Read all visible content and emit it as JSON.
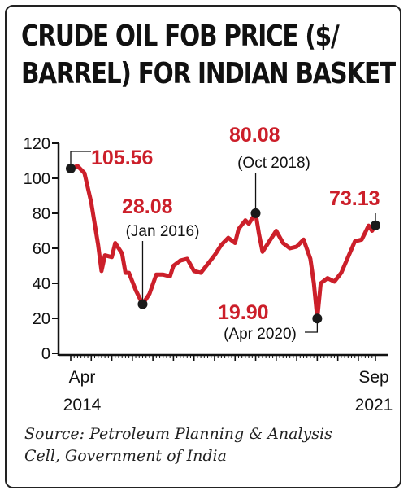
{
  "title_lines": [
    "CRUDE OIL FOB PRICE ($/",
    "BARREL) FOR INDIAN BASKET"
  ],
  "source_lines": [
    "Source: Petroleum Planning & Analysis",
    "Cell, Government of India"
  ],
  "colors": {
    "line": "#cc1f2a",
    "annotation": "#cc1f2a",
    "marker": "#1a1a1a",
    "axis": "#111111",
    "text": "#111111"
  },
  "chart_data": {
    "type": "line",
    "title": "CRUDE OIL FOB PRICE ($/BARREL) FOR INDIAN BASKET",
    "xlabel": "",
    "ylabel": "",
    "ylim": [
      0,
      120
    ],
    "y_ticks": [
      0,
      20,
      40,
      60,
      80,
      100,
      120
    ],
    "y_tick_labels": [
      "0",
      "20",
      "40",
      "60",
      "80",
      "100",
      "120"
    ],
    "x_tick_labels": [
      {
        "month": "Apr",
        "year": "2014"
      },
      {
        "month": "Sep",
        "year": "2021"
      }
    ],
    "grid": false,
    "legend": "none",
    "series": [
      {
        "x": [
          "2014-04",
          "2014-06",
          "2014-08",
          "2014-10",
          "2014-12",
          "2015-01",
          "2015-02",
          "2015-04",
          "2015-05",
          "2015-07",
          "2015-08",
          "2015-09",
          "2015-11",
          "2016-01",
          "2016-03",
          "2016-05",
          "2016-07",
          "2016-09",
          "2016-10",
          "2016-12",
          "2017-02",
          "2017-04",
          "2017-06",
          "2017-08",
          "2017-10",
          "2017-12",
          "2018-02",
          "2018-04",
          "2018-05",
          "2018-07",
          "2018-08",
          "2018-10",
          "2018-11",
          "2018-12",
          "2019-02",
          "2019-04",
          "2019-06",
          "2019-08",
          "2019-10",
          "2019-12",
          "2020-02",
          "2020-03",
          "2020-04",
          "2020-05",
          "2020-07",
          "2020-09",
          "2020-11",
          "2021-01",
          "2021-03",
          "2021-05",
          "2021-07",
          "2021-08",
          "2021-09"
        ],
        "values": [
          105.56,
          107,
          103,
          86,
          62,
          47,
          56,
          55,
          63,
          57,
          46,
          46,
          36,
          28.08,
          34,
          45,
          45,
          44,
          50,
          53,
          54,
          47,
          46,
          51,
          56,
          62,
          66,
          63,
          71,
          76,
          74,
          80.08,
          68,
          58,
          64,
          70,
          63,
          60,
          61,
          65,
          54,
          40,
          19.9,
          40,
          43,
          41,
          46,
          55,
          64,
          65,
          73,
          70,
          73.13
        ]
      }
    ],
    "annotations": [
      {
        "value": "105.56",
        "date": ""
      },
      {
        "value": "28.08",
        "date": "(Jan 2016)"
      },
      {
        "value": "80.08",
        "date": "(Oct 2018)"
      },
      {
        "value": "19.90",
        "date": "(Apr 2020)"
      },
      {
        "value": "73.13",
        "date": ""
      }
    ]
  }
}
